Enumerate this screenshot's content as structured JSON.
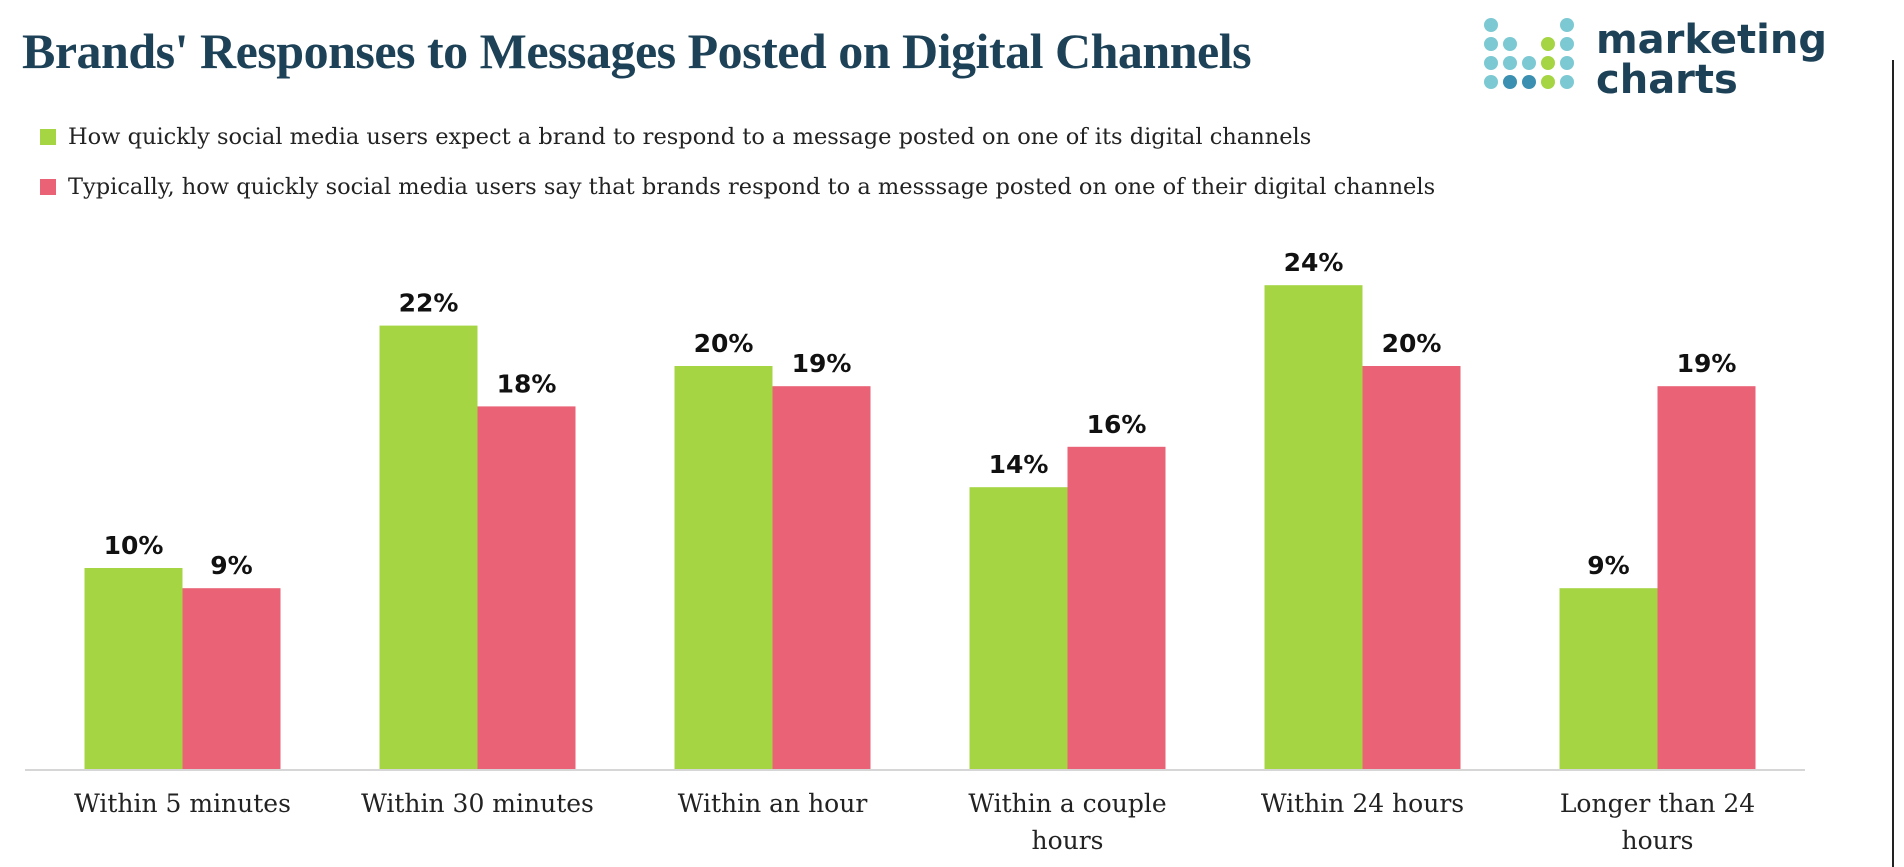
{
  "header": {
    "title": "Brands' Responses to Messages Posted on Digital Channels",
    "logo_line1": "marketing",
    "logo_line2": "charts"
  },
  "colors": {
    "title": "#1d4257",
    "expect": "#a5d543",
    "typical": "#e96275",
    "logo_teal": "#7cc9d3",
    "logo_green": "#a5d543",
    "logo_blue": "#3b8fb0"
  },
  "chart_data": {
    "type": "bar",
    "title": "Brands' Responses to Messages Posted on Digital Channels",
    "xlabel": "",
    "ylabel": "",
    "ylim": [
      0,
      26
    ],
    "grid": false,
    "legend_position": "top-left",
    "categories": [
      [
        "Within 5 minutes"
      ],
      [
        "Within 30 minutes"
      ],
      [
        "Within an hour"
      ],
      [
        "Within a couple",
        "hours"
      ],
      [
        "Within 24 hours"
      ],
      [
        "Longer than 24",
        "hours"
      ]
    ],
    "series": [
      {
        "name": "How quickly social media users expect a brand to respond to a message posted on one of its digital channels",
        "color": "#a5d543",
        "values": [
          10,
          22,
          20,
          14,
          24,
          9
        ],
        "labels": [
          "10%",
          "22%",
          "20%",
          "14%",
          "24%",
          "9%"
        ]
      },
      {
        "name": "Typically, how quickly social media users say that brands respond to a messsage posted on one of their digital channels",
        "color": "#e96275",
        "values": [
          9,
          18,
          19,
          16,
          20,
          19
        ],
        "labels": [
          "9%",
          "18%",
          "19%",
          "16%",
          "20%",
          "19%"
        ]
      }
    ]
  }
}
